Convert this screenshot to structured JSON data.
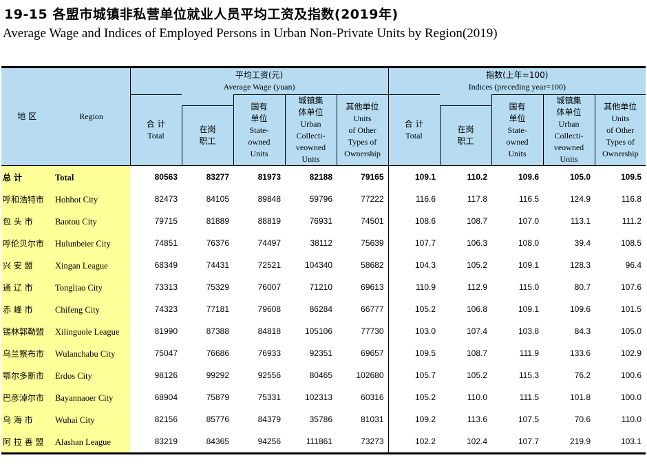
{
  "title": {
    "cn": "19-15 各盟市城镇非私营单位就业人员平均工资及指数(2019年)",
    "en": "Average Wage and Indices of Employed Persons in Urban Non-Private Units by Region(2019)"
  },
  "header": {
    "region_cn": "地 区",
    "region_en": "Region",
    "wage_group_cn": "平均工资(元)",
    "wage_group_en": "Average Wage (yuan)",
    "index_group_cn": "指数(上年=100)",
    "index_group_en": "Indices (preceding year=100)",
    "columns": {
      "total_cn": "合 计",
      "total_en": "Total",
      "onpost_cn": "在岗",
      "onpost_cn2": "职工",
      "state_cn": "国有",
      "state_cn2": "单位",
      "state_en": "State-",
      "state_en2": "owned",
      "state_en3": "Units",
      "coll_cn": "城镇集",
      "coll_cn2": "体单位",
      "coll_en": "Urban",
      "coll_en2": "Collecti-",
      "coll_en3": "veowned",
      "coll_en4": "Units",
      "other_cn": "其他单位",
      "other_en": "Units",
      "other_en2": "of Other",
      "other_en3": "Types of",
      "other_en4": "Ownership"
    }
  },
  "rows": [
    {
      "cn": "总    计",
      "en": "Total",
      "v": [
        "80563",
        "83277",
        "81973",
        "82188",
        "79165",
        "109.1",
        "110.2",
        "109.6",
        "105.0",
        "109.5"
      ]
    },
    {
      "cn": "呼和浩特市",
      "en": "Hohhot City",
      "v": [
        "82473",
        "84105",
        "89848",
        "59796",
        "77222",
        "116.6",
        "117.8",
        "116.5",
        "124.9",
        "116.8"
      ]
    },
    {
      "cn": "包   头   市",
      "en": "Baotou City",
      "v": [
        "79715",
        "81889",
        "88819",
        "76931",
        "74501",
        "108.6",
        "108.7",
        "107.0",
        "113.1",
        "111.2"
      ]
    },
    {
      "cn": "呼伦贝尔市",
      "en": "Hulunbeier City",
      "v": [
        "74851",
        "76376",
        "74497",
        "38112",
        "75639",
        "107.7",
        "106.3",
        "108.0",
        "39.4",
        "108.5"
      ]
    },
    {
      "cn": "兴   安   盟",
      "en": "Xingan League",
      "v": [
        "68349",
        "74431",
        "72521",
        "104340",
        "58682",
        "104.3",
        "105.2",
        "109.1",
        "128.3",
        "96.4"
      ]
    },
    {
      "cn": "通   辽   市",
      "en": "Tongliao City",
      "v": [
        "73313",
        "75329",
        "76007",
        "71210",
        "69613",
        "110.9",
        "112.9",
        "115.0",
        "80.7",
        "107.6"
      ]
    },
    {
      "cn": "赤   峰   市",
      "en": "Chifeng City",
      "v": [
        "74323",
        "77181",
        "79608",
        "86284",
        "66777",
        "105.2",
        "106.8",
        "109.1",
        "109.6",
        "101.5"
      ]
    },
    {
      "cn": "锡林郭勒盟",
      "en": "Xilinguole League",
      "v": [
        "81990",
        "87388",
        "84818",
        "105106",
        "77730",
        "103.0",
        "107.4",
        "103.8",
        "84.3",
        "105.0"
      ]
    },
    {
      "cn": "乌兰察布市",
      "en": "Wulanchabu City",
      "v": [
        "75047",
        "76686",
        "76933",
        "92351",
        "69657",
        "109.5",
        "108.7",
        "111.9",
        "133.6",
        "102.9"
      ]
    },
    {
      "cn": "鄂尔多斯市",
      "en": "Erdos City",
      "v": [
        "98126",
        "99292",
        "92556",
        "80465",
        "102680",
        "105.7",
        "105.2",
        "115.3",
        "76.2",
        "100.6"
      ]
    },
    {
      "cn": "巴彦淖尔市",
      "en": "Bayannaoer City",
      "v": [
        "68904",
        "75879",
        "75331",
        "102313",
        "60316",
        "105.2",
        "110.0",
        "111.5",
        "101.8",
        "100.0"
      ]
    },
    {
      "cn": "乌   海   市",
      "en": "Wuhai City",
      "v": [
        "82156",
        "85776",
        "84379",
        "35786",
        "81031",
        "109.2",
        "113.6",
        "107.5",
        "70.6",
        "110.0"
      ]
    },
    {
      "cn": "阿 拉 善 盟",
      "en": "Alashan League",
      "v": [
        "83219",
        "84365",
        "94256",
        "111861",
        "73273",
        "102.2",
        "102.4",
        "107.7",
        "219.9",
        "103.1"
      ]
    }
  ]
}
